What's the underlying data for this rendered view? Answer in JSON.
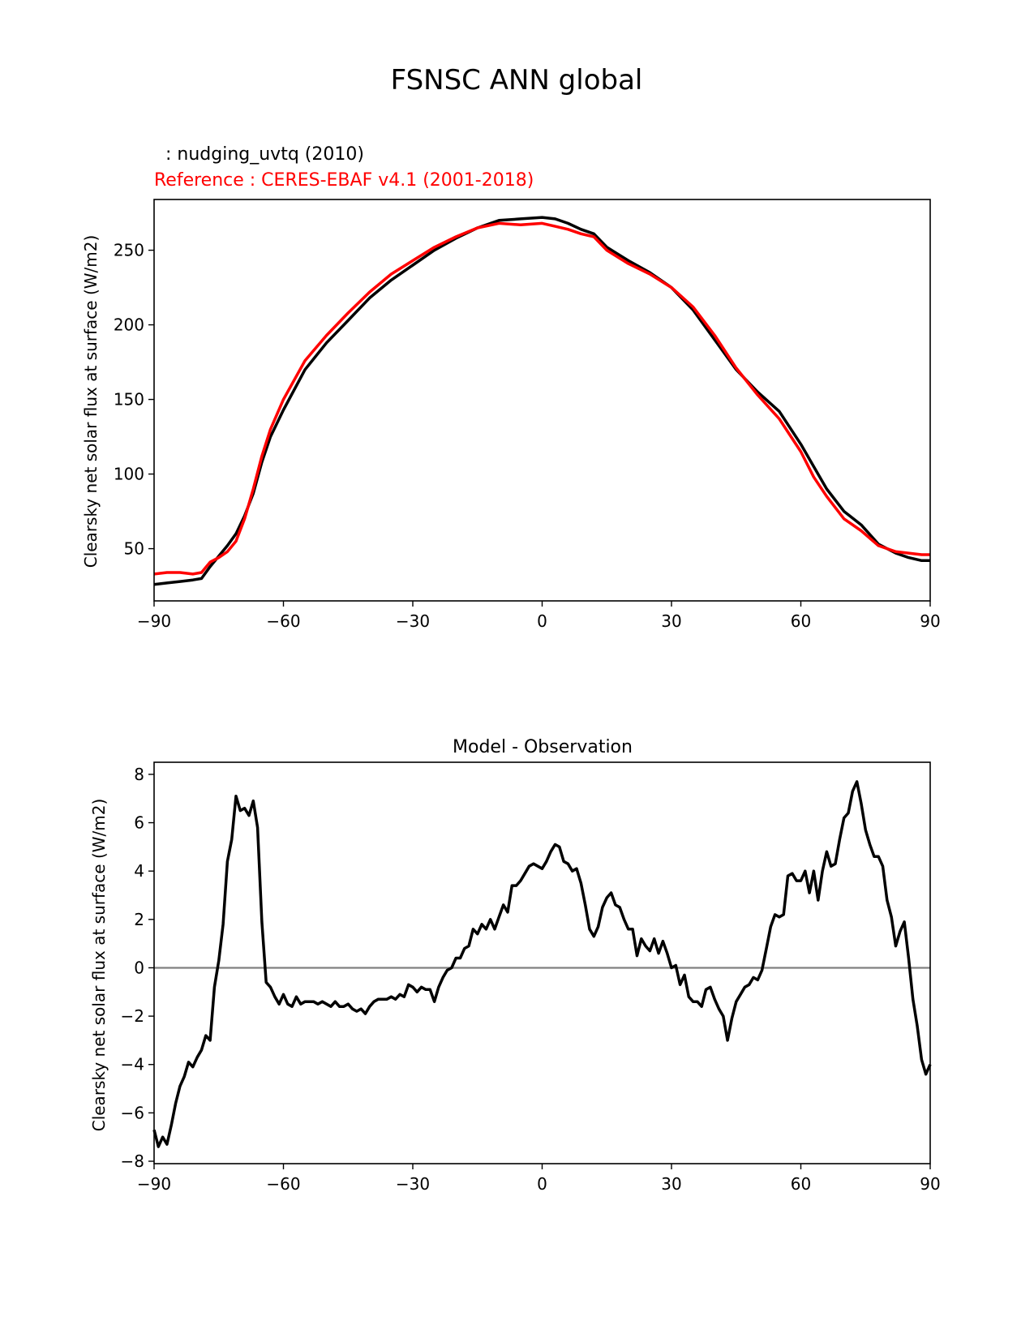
{
  "figure": {
    "title": "FSNSC ANN global"
  },
  "chart_data": [
    {
      "type": "line",
      "legend_lines": [
        {
          "text": "  : nudging_uvtq (2010)",
          "color": "#000000"
        },
        {
          "text": "Reference : CERES-EBAF v4.1 (2001-2018)",
          "color": "#ff0000"
        }
      ],
      "xlabel": "",
      "ylabel": "Clearsky net solar flux at surface (W/m2)",
      "xlim": [
        -90,
        90
      ],
      "ylim": [
        15,
        284
      ],
      "xticks": [
        -90,
        -60,
        -30,
        0,
        30,
        60,
        90
      ],
      "xtick_labels": [
        "−90",
        "−60",
        "−30",
        "0",
        "30",
        "60",
        "90"
      ],
      "yticks": [
        50,
        100,
        150,
        200,
        250
      ],
      "ytick_labels": [
        "50",
        "100",
        "150",
        "200",
        "250"
      ],
      "grid": false,
      "series": [
        {
          "color": "#000000",
          "x": [
            -90,
            -87,
            -84,
            -81,
            -79,
            -77,
            -75,
            -73,
            -71,
            -69,
            -67,
            -65,
            -63,
            -60,
            -55,
            -50,
            -45,
            -40,
            -35,
            -30,
            -25,
            -20,
            -15,
            -10,
            -5,
            0,
            3,
            6,
            9,
            12,
            15,
            20,
            25,
            30,
            35,
            40,
            45,
            50,
            55,
            60,
            63,
            66,
            70,
            74,
            78,
            82,
            85,
            88,
            90
          ],
          "y": [
            26,
            27,
            28,
            29,
            30,
            38,
            45,
            52,
            60,
            72,
            87,
            108,
            125,
            143,
            170,
            188,
            203,
            218,
            230,
            240,
            250,
            258,
            265,
            270,
            271,
            272,
            271,
            268,
            264,
            261,
            252,
            243,
            235,
            225,
            210,
            190,
            170,
            155,
            142,
            120,
            105,
            90,
            75,
            66,
            53,
            47,
            44,
            42,
            42
          ]
        },
        {
          "color": "#ff0000",
          "x": [
            -90,
            -87,
            -84,
            -81,
            -79,
            -77,
            -75,
            -73,
            -71,
            -69,
            -67,
            -65,
            -63,
            -60,
            -55,
            -50,
            -45,
            -40,
            -35,
            -30,
            -25,
            -20,
            -15,
            -10,
            -5,
            0,
            3,
            6,
            9,
            12,
            15,
            20,
            25,
            30,
            35,
            40,
            45,
            50,
            55,
            60,
            63,
            66,
            70,
            74,
            78,
            82,
            85,
            88,
            90
          ],
          "y": [
            33,
            34,
            34,
            33,
            34,
            41,
            44,
            48,
            55,
            70,
            90,
            112,
            130,
            150,
            176,
            193,
            208,
            222,
            234,
            243,
            252,
            259,
            265,
            268,
            267,
            268,
            266,
            264,
            261,
            259,
            250,
            241,
            234,
            225,
            212,
            193,
            171,
            153,
            137,
            115,
            98,
            85,
            70,
            62,
            52,
            48,
            47,
            46,
            46
          ]
        }
      ]
    },
    {
      "type": "line",
      "title": "Model - Observation",
      "xlabel": "",
      "ylabel": "Clearsky net solar flux at surface (W/m2)",
      "xlim": [
        -90,
        90
      ],
      "ylim": [
        -8.1,
        8.5
      ],
      "xticks": [
        -90,
        -60,
        -30,
        0,
        30,
        60,
        90
      ],
      "xtick_labels": [
        "−90",
        "−60",
        "−30",
        "0",
        "30",
        "60",
        "90"
      ],
      "yticks": [
        -8,
        -6,
        -4,
        -2,
        0,
        2,
        4,
        6,
        8
      ],
      "ytick_labels": [
        "−8",
        "−6",
        "−4",
        "−2",
        "0",
        "2",
        "4",
        "6",
        "8"
      ],
      "grid": false,
      "zero_line": {
        "y": 0,
        "color": "#808080"
      },
      "series": [
        {
          "color": "#000000",
          "x": [
            -90,
            -89,
            -88,
            -87,
            -86,
            -85,
            -84,
            -83,
            -82,
            -81,
            -80,
            -79,
            -78,
            -77,
            -76,
            -75,
            -74,
            -73,
            -72,
            -71,
            -70,
            -69,
            -68,
            -67,
            -66,
            -65,
            -64,
            -63,
            -62,
            -61,
            -60,
            -59,
            -58,
            -57,
            -56,
            -55,
            -54,
            -53,
            -52,
            -51,
            -50,
            -49,
            -48,
            -47,
            -46,
            -45,
            -44,
            -43,
            -42,
            -41,
            -40,
            -39,
            -38,
            -37,
            -36,
            -35,
            -34,
            -33,
            -32,
            -31,
            -30,
            -29,
            -28,
            -27,
            -26,
            -25,
            -24,
            -23,
            -22,
            -21,
            -20,
            -19,
            -18,
            -17,
            -16,
            -15,
            -14,
            -13,
            -12,
            -11,
            -10,
            -9,
            -8,
            -7,
            -6,
            -5,
            -4,
            -3,
            -2,
            -1,
            0,
            1,
            2,
            3,
            4,
            5,
            6,
            7,
            8,
            9,
            10,
            11,
            12,
            13,
            14,
            15,
            16,
            17,
            18,
            19,
            20,
            21,
            22,
            23,
            24,
            25,
            26,
            27,
            28,
            29,
            30,
            31,
            32,
            33,
            34,
            35,
            36,
            37,
            38,
            39,
            40,
            41,
            42,
            43,
            44,
            45,
            46,
            47,
            48,
            49,
            50,
            51,
            52,
            53,
            54,
            55,
            56,
            57,
            58,
            59,
            60,
            61,
            62,
            63,
            64,
            65,
            66,
            67,
            68,
            69,
            70,
            71,
            72,
            73,
            74,
            75,
            76,
            77,
            78,
            79,
            80,
            81,
            82,
            83,
            84,
            85,
            86,
            87,
            88,
            89,
            90
          ],
          "y": [
            -6.7,
            -7.4,
            -7.0,
            -7.3,
            -6.5,
            -5.6,
            -4.9,
            -4.5,
            -3.9,
            -4.1,
            -3.7,
            -3.4,
            -2.8,
            -3.0,
            -0.8,
            0.3,
            1.8,
            4.4,
            5.3,
            7.1,
            6.5,
            6.6,
            6.3,
            6.9,
            5.8,
            1.9,
            -0.6,
            -0.8,
            -1.2,
            -1.5,
            -1.1,
            -1.5,
            -1.6,
            -1.2,
            -1.5,
            -1.4,
            -1.4,
            -1.4,
            -1.5,
            -1.4,
            -1.5,
            -1.6,
            -1.4,
            -1.6,
            -1.6,
            -1.5,
            -1.7,
            -1.8,
            -1.7,
            -1.9,
            -1.6,
            -1.4,
            -1.3,
            -1.3,
            -1.3,
            -1.2,
            -1.3,
            -1.1,
            -1.2,
            -0.7,
            -0.8,
            -1.0,
            -0.8,
            -0.9,
            -0.9,
            -1.4,
            -0.8,
            -0.4,
            -0.1,
            0.0,
            0.4,
            0.4,
            0.8,
            0.9,
            1.6,
            1.4,
            1.8,
            1.6,
            2.0,
            1.6,
            2.1,
            2.6,
            2.3,
            3.4,
            3.4,
            3.6,
            3.9,
            4.2,
            4.3,
            4.2,
            4.1,
            4.4,
            4.8,
            5.1,
            5.0,
            4.4,
            4.3,
            4.0,
            4.1,
            3.5,
            2.6,
            1.6,
            1.3,
            1.7,
            2.5,
            2.9,
            3.1,
            2.6,
            2.5,
            2.0,
            1.6,
            1.6,
            0.5,
            1.2,
            0.9,
            0.7,
            1.2,
            0.6,
            1.1,
            0.6,
            0.0,
            0.1,
            -0.7,
            -0.3,
            -1.2,
            -1.4,
            -1.4,
            -1.6,
            -0.9,
            -0.8,
            -1.3,
            -1.7,
            -2.0,
            -3.0,
            -2.1,
            -1.4,
            -1.1,
            -0.8,
            -0.7,
            -0.4,
            -0.5,
            -0.1,
            0.8,
            1.7,
            2.2,
            2.1,
            2.2,
            3.8,
            3.9,
            3.6,
            3.6,
            4.0,
            3.1,
            4.0,
            2.8,
            4.0,
            4.8,
            4.2,
            4.3,
            5.3,
            6.2,
            6.4,
            7.3,
            7.7,
            6.8,
            5.7,
            5.1,
            4.6,
            4.6,
            4.2,
            2.8,
            2.1,
            0.9,
            1.5,
            1.9,
            0.4,
            -1.3,
            -2.4,
            -3.8,
            -4.4,
            -4.0
          ]
        }
      ]
    }
  ]
}
